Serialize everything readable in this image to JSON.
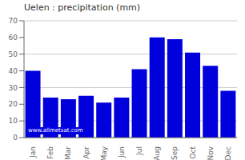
{
  "chart_data": {
    "type": "bar",
    "title": "Uelen : precipitation (mm)",
    "categories": [
      "Jan",
      "Feb",
      "Mar",
      "Apr",
      "May",
      "Jun",
      "Jul",
      "Aug",
      "Sep",
      "Oct",
      "Nov",
      "Dec"
    ],
    "values": [
      40,
      24,
      23,
      25,
      21,
      24,
      41,
      60,
      59,
      51,
      43,
      28
    ],
    "color": "#0000dd",
    "ylim": [
      0,
      70
    ],
    "yticks": [
      0,
      10,
      20,
      30,
      40,
      50,
      60,
      70
    ],
    "grid": true,
    "annotations": [
      "www.allmetsat.com"
    ]
  }
}
